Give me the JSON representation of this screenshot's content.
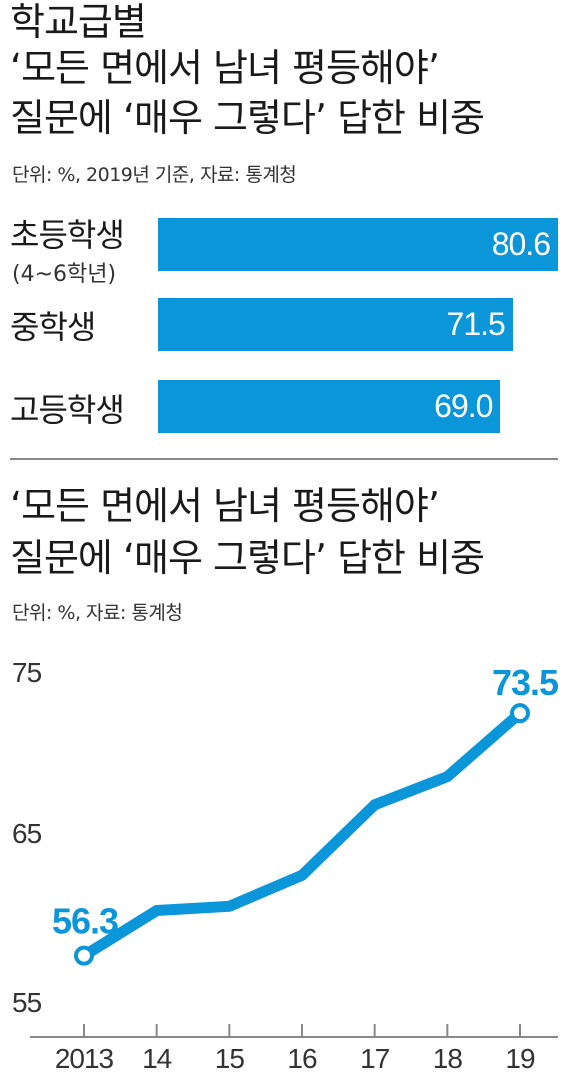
{
  "top": {
    "title_lines": [
      "학교급별",
      "‘모든 면에서 남녀 평등해야’",
      "질문에 ‘매우 그렇다’ 답한 비중"
    ],
    "note": "단위: %, 2019년 기준, 자료: 통계청"
  },
  "bottom": {
    "title_lines": [
      "‘모든 면에서 남녀 평등해야’",
      "질문에 ‘매우 그렇다’ 답한 비중"
    ],
    "note": "단위: %, 자료: 통계청"
  },
  "colors": {
    "accent": "#0b96d9",
    "text": "#1a1a1a",
    "axis": "#888888"
  },
  "chart_data": [
    {
      "type": "bar",
      "orientation": "horizontal",
      "title": "학교급별 ‘모든 면에서 남녀 평등해야’ 질문에 ‘매우 그렇다’ 답한 비중",
      "categories": [
        "초등학생",
        "중학생",
        "고등학생"
      ],
      "category_notes": [
        "(4~6학년)",
        "",
        ""
      ],
      "values": [
        80.6,
        71.5,
        69.0
      ],
      "value_labels": [
        "80.6",
        "71.5",
        "69.0"
      ],
      "unit": "%"
    },
    {
      "type": "line",
      "title": "‘모든 면에서 남녀 평등해야’ 질문에 ‘매우 그렇다’ 답한 비중",
      "x": [
        "2013",
        "14",
        "15",
        "16",
        "17",
        "18",
        "19"
      ],
      "series": [
        {
          "values": [
            56.3,
            59.5,
            59.8,
            62.0,
            67.0,
            69.0,
            73.5
          ]
        }
      ],
      "point_labels": [
        {
          "index": 0,
          "text": "56.3"
        },
        {
          "index": 6,
          "text": "73.5"
        }
      ],
      "yticks": [
        "55",
        "65",
        "75"
      ],
      "ylim": [
        55,
        75
      ],
      "unit": "%",
      "grid": false
    }
  ]
}
